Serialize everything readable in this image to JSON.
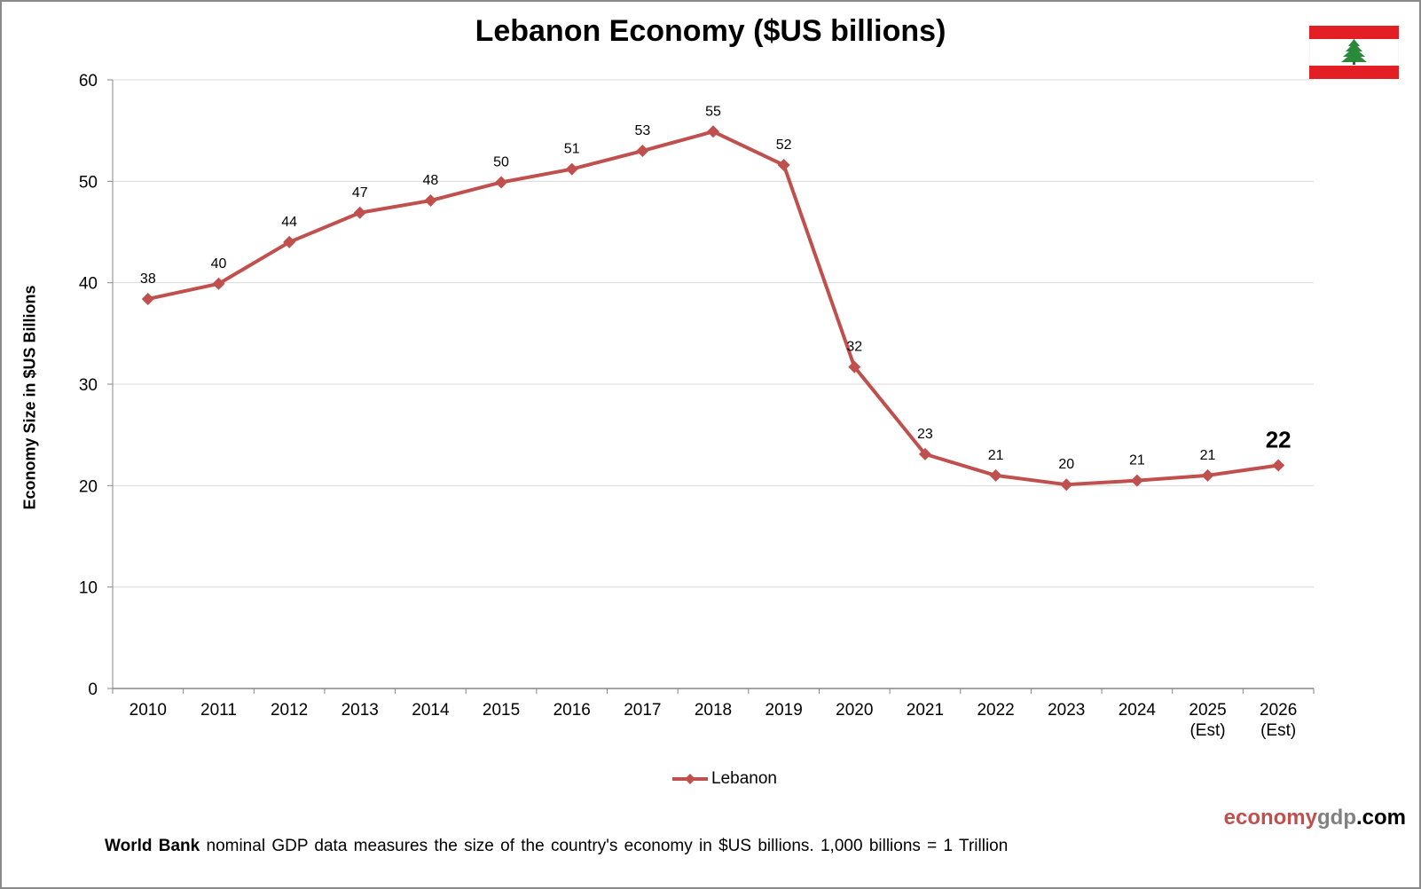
{
  "chart_data": {
    "type": "line",
    "title": "Lebanon Economy ($US billions)",
    "xlabel": "",
    "ylabel": "Economy Size in $US Billions",
    "ylim": [
      0,
      60
    ],
    "yticks": [
      0,
      10,
      20,
      30,
      40,
      50,
      60
    ],
    "grid": true,
    "legend_position": "bottom-center",
    "categories": [
      [
        "2010"
      ],
      [
        "2011"
      ],
      [
        "2012"
      ],
      [
        "2013"
      ],
      [
        "2014"
      ],
      [
        "2015"
      ],
      [
        "2016"
      ],
      [
        "2017"
      ],
      [
        "2018"
      ],
      [
        "2019"
      ],
      [
        "2020"
      ],
      [
        "2021"
      ],
      [
        "2022"
      ],
      [
        "2023"
      ],
      [
        "2024"
      ],
      [
        "2025",
        "(Est)"
      ],
      [
        "2026",
        "(Est)"
      ]
    ],
    "series": [
      {
        "name": "Lebanon",
        "color": "#c0504d",
        "marker": "diamond",
        "values": [
          38.4,
          39.9,
          44.0,
          46.9,
          48.1,
          49.9,
          51.2,
          53.0,
          54.9,
          51.6,
          31.7,
          23.1,
          21.0,
          20.1,
          20.5,
          21.0,
          22.0
        ],
        "data_labels": [
          "38",
          "40",
          "44",
          "47",
          "48",
          "50",
          "51",
          "53",
          "55",
          "52",
          "32",
          "23",
          "21",
          "20",
          "21",
          "21",
          "22"
        ],
        "highlight_last_label": true
      }
    ]
  },
  "flag": {
    "icon": "lebanon-flag",
    "red": "#e31e24",
    "white": "#ffffff",
    "cedar": "#2a8a3a"
  },
  "legend": {
    "label": "Lebanon"
  },
  "brand": {
    "part1": "economy",
    "part2": "gdp",
    "part3": ".com"
  },
  "footnote": {
    "bold": "World Bank",
    "text": " nominal GDP data  measures the size of the country's economy in $US billions.  1,000 billions = 1 Trillion"
  }
}
